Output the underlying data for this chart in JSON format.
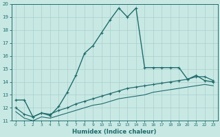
{
  "title": "",
  "xlabel": "Humidex (Indice chaleur)",
  "xlim": [
    -0.5,
    23.5
  ],
  "ylim": [
    11,
    20
  ],
  "yticks": [
    11,
    12,
    13,
    14,
    15,
    16,
    17,
    18,
    19,
    20
  ],
  "xticks": [
    0,
    1,
    2,
    3,
    4,
    5,
    6,
    7,
    8,
    9,
    10,
    11,
    12,
    13,
    14,
    15,
    16,
    17,
    18,
    19,
    20,
    21,
    22,
    23
  ],
  "background_color": "#c8e8e4",
  "grid_color": "#aacfcc",
  "line_color": "#1e6b6b",
  "series": [
    {
      "x": [
        0,
        1,
        2,
        3,
        4,
        5,
        6,
        7,
        8,
        9,
        10,
        11,
        12,
        13,
        14,
        15,
        16,
        17,
        18,
        19,
        20,
        21,
        22,
        23
      ],
      "y": [
        12.6,
        12.6,
        11.3,
        11.6,
        11.4,
        12.1,
        13.2,
        14.5,
        16.2,
        16.8,
        17.8,
        18.8,
        19.7,
        19.0,
        19.7,
        15.1,
        15.1,
        15.1,
        15.1,
        15.1,
        14.2,
        14.5,
        14.1,
        14.0
      ],
      "marker": true,
      "linewidth": 1.0,
      "markersize": 2.8
    },
    {
      "x": [
        0,
        1,
        2,
        3,
        4,
        5,
        6,
        7,
        8,
        9,
        10,
        11,
        12,
        13,
        14,
        15,
        16,
        17,
        18,
        19,
        20,
        21,
        22,
        23
      ],
      "y": [
        12.0,
        11.5,
        11.3,
        11.6,
        11.5,
        11.8,
        12.0,
        12.3,
        12.5,
        12.7,
        12.9,
        13.1,
        13.3,
        13.5,
        13.6,
        13.7,
        13.8,
        13.9,
        14.0,
        14.1,
        14.2,
        14.4,
        14.4,
        14.1
      ],
      "marker": true,
      "linewidth": 0.9,
      "markersize": 2.5
    },
    {
      "x": [
        0,
        1,
        2,
        3,
        4,
        5,
        6,
        7,
        8,
        9,
        10,
        11,
        12,
        13,
        14,
        15,
        16,
        17,
        18,
        19,
        20,
        21,
        22,
        23
      ],
      "y": [
        11.7,
        11.2,
        11.0,
        11.3,
        11.2,
        11.4,
        11.6,
        11.8,
        12.0,
        12.2,
        12.3,
        12.5,
        12.7,
        12.8,
        12.9,
        13.0,
        13.2,
        13.3,
        13.4,
        13.5,
        13.6,
        13.7,
        13.8,
        13.7
      ],
      "marker": false,
      "linewidth": 0.8,
      "markersize": 0
    }
  ]
}
